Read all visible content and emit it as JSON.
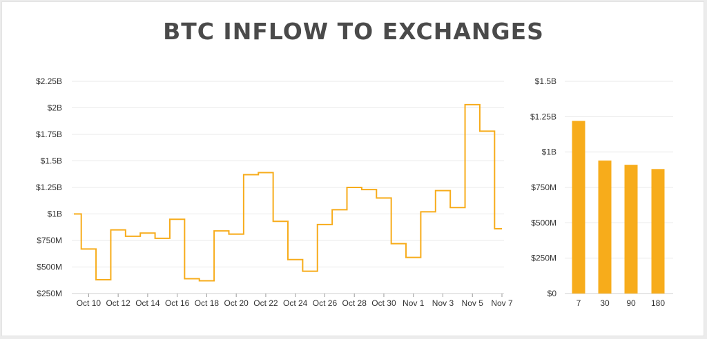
{
  "title": "BTC INFLOW TO EXCHANGES",
  "colors": {
    "accent": "#f7ac1b",
    "text": "#333333",
    "title": "#4a4a4a",
    "grid": "#e8e8e8"
  },
  "chart_data": [
    {
      "type": "line",
      "step": true,
      "xlabel": "",
      "ylabel": "",
      "x": [
        "Oct 9",
        "Oct 10",
        "Oct 11",
        "Oct 12",
        "Oct 13",
        "Oct 14",
        "Oct 15",
        "Oct 16",
        "Oct 17",
        "Oct 18",
        "Oct 19",
        "Oct 20",
        "Oct 21",
        "Oct 22",
        "Oct 23",
        "Oct 24",
        "Oct 25",
        "Oct 26",
        "Oct 27",
        "Oct 28",
        "Oct 29",
        "Oct 30",
        "Oct 31",
        "Nov 1",
        "Nov 2",
        "Nov 3",
        "Nov 4",
        "Nov 5",
        "Nov 6",
        "Nov 7"
      ],
      "x_tick_labels": [
        "Oct 10",
        "Oct 12",
        "Oct 14",
        "Oct 16",
        "Oct 18",
        "Oct 20",
        "Oct 22",
        "Oct 24",
        "Oct 26",
        "Oct 28",
        "Oct 30",
        "Nov 1",
        "Nov 3",
        "Nov 5",
        "Nov 7"
      ],
      "series": [
        {
          "values": [
            1000,
            670,
            380,
            850,
            790,
            820,
            770,
            950,
            390,
            370,
            840,
            810,
            1370,
            1390,
            930,
            570,
            460,
            900,
            1040,
            1250,
            1230,
            1150,
            720,
            590,
            1020,
            1220,
            1060,
            2030,
            1780,
            860
          ]
        }
      ],
      "y_tick_labels": [
        "$250M",
        "$500M",
        "$750M",
        "$1B",
        "$1.25B",
        "$1.5B",
        "$1.75B",
        "$2B",
        "$2.25B"
      ],
      "ylim": [
        250,
        2250
      ],
      "grid": true
    },
    {
      "type": "bar",
      "xlabel": "",
      "ylabel": "",
      "categories": [
        "7",
        "30",
        "90",
        "180"
      ],
      "values": [
        1220,
        940,
        910,
        880
      ],
      "y_tick_labels": [
        "$0",
        "$250M",
        "$500M",
        "$750M",
        "$1B",
        "$1.25B",
        "$1.5B"
      ],
      "ylim": [
        0,
        1500
      ],
      "grid": true
    }
  ]
}
